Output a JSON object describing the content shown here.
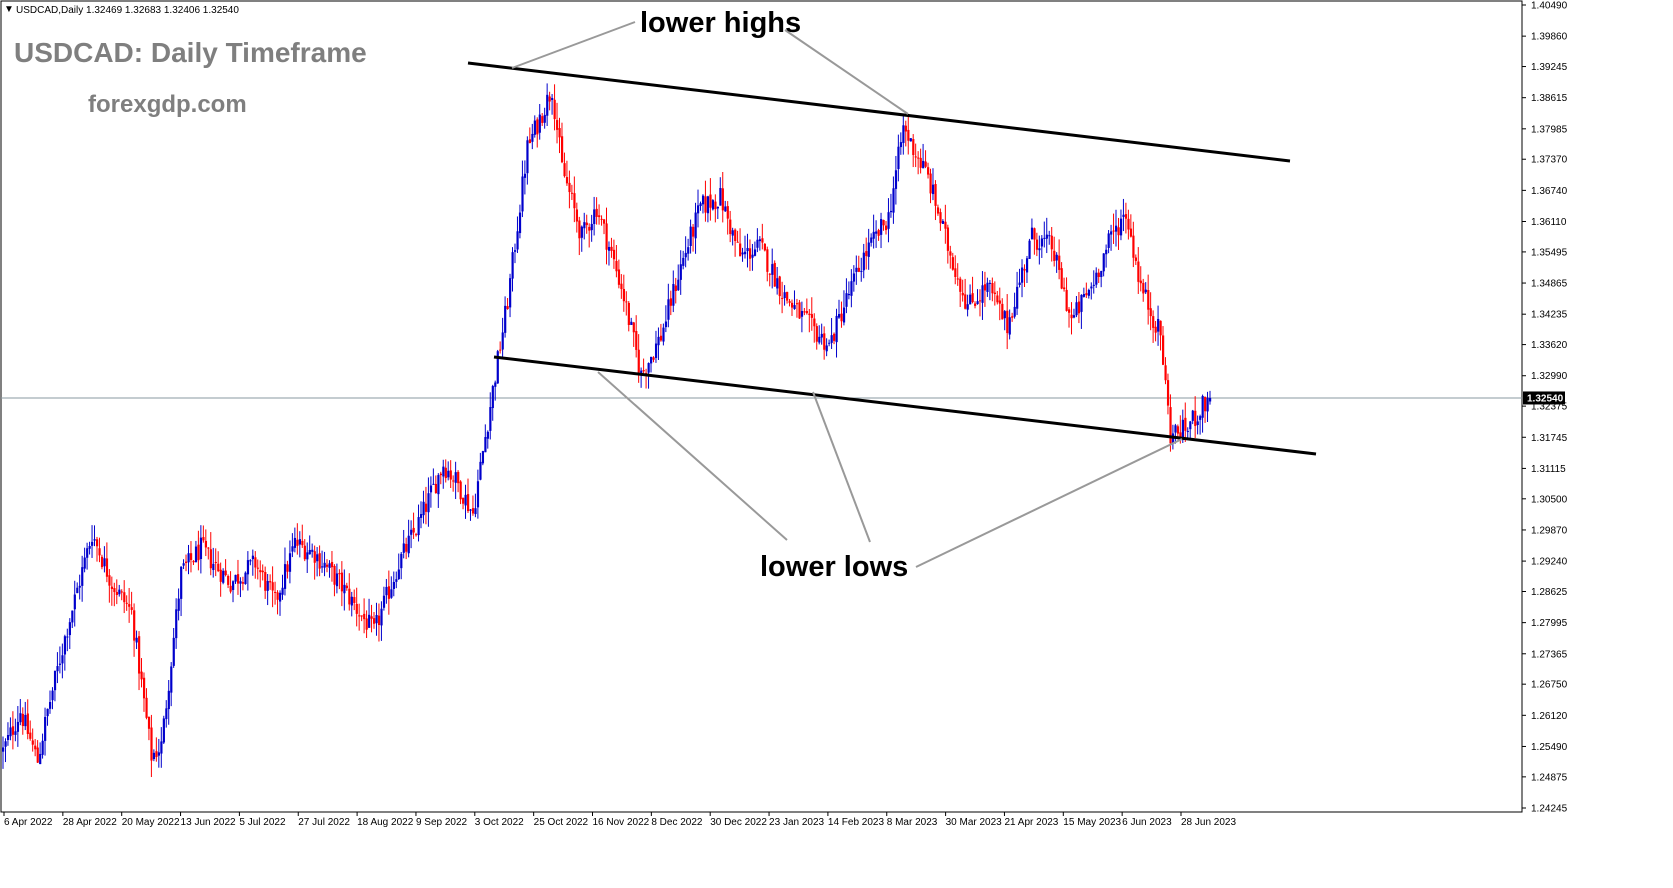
{
  "header": {
    "symbol_line": "USDCAD,Daily  1.32469 1.32683 1.32406 1.32540"
  },
  "title": "USDCAD: Daily Timeframe",
  "website": "forexgdp.com",
  "annotations": {
    "top": "lower highs",
    "bottom": "lower lows"
  },
  "colors": {
    "bull": "#0000cc",
    "bear": "#ff0000",
    "trendline": "#000000",
    "pointer": "#999999",
    "price_line": "#8a9aa0",
    "title": "#7f7f7f",
    "price_tag_bg": "#000000"
  },
  "chart_data": {
    "type": "candlestick",
    "symbol": "USDCAD",
    "timeframe": "Daily",
    "ylim": [
      1.24245,
      1.4049
    ],
    "y_ticks": [
      "1.40490",
      "1.39860",
      "1.39245",
      "1.38615",
      "1.37985",
      "1.37370",
      "1.36740",
      "1.36110",
      "1.35495",
      "1.34865",
      "1.34235",
      "1.33620",
      "1.32990",
      "1.32375",
      "1.31745",
      "1.31115",
      "1.30500",
      "1.29870",
      "1.29240",
      "1.28625",
      "1.27995",
      "1.27365",
      "1.26750",
      "1.26120",
      "1.25490",
      "1.24875",
      "1.24245"
    ],
    "x_ticks": [
      "6 Apr 2022",
      "28 Apr 2022",
      "20 May 2022",
      "13 Jun 2022",
      "5 Jul 2022",
      "27 Jul 2022",
      "18 Aug 2022",
      "9 Sep 2022",
      "3 Oct 2022",
      "25 Oct 2022",
      "16 Nov 2022",
      "8 Dec 2022",
      "30 Dec 2022",
      "23 Jan 2023",
      "14 Feb 2023",
      "8 Mar 2023",
      "30 Mar 2023",
      "21 Apr 2023",
      "15 May 2023",
      "6 Jun 2023",
      "28 Jun 2023"
    ],
    "current_price": "1.32540",
    "ohlc_last": {
      "open": 1.32469,
      "high": 1.32683,
      "low": 1.32406,
      "close": 1.3254
    },
    "path_anchors": [
      [
        0,
        1.254
      ],
      [
        7,
        1.262
      ],
      [
        14,
        1.252
      ],
      [
        18,
        1.262
      ],
      [
        26,
        1.279
      ],
      [
        36,
        1.298
      ],
      [
        44,
        1.288
      ],
      [
        52,
        1.282
      ],
      [
        60,
        1.253
      ],
      [
        64,
        1.255
      ],
      [
        72,
        1.29
      ],
      [
        80,
        1.295
      ],
      [
        92,
        1.288
      ],
      [
        102,
        1.292
      ],
      [
        110,
        1.284
      ],
      [
        118,
        1.296
      ],
      [
        126,
        1.294
      ],
      [
        136,
        1.288
      ],
      [
        144,
        1.282
      ],
      [
        150,
        1.278
      ],
      [
        160,
        1.292
      ],
      [
        168,
        1.3
      ],
      [
        178,
        1.312
      ],
      [
        184,
        1.308
      ],
      [
        190,
        1.302
      ],
      [
        198,
        1.327
      ],
      [
        204,
        1.345
      ],
      [
        212,
        1.376
      ],
      [
        222,
        1.388
      ],
      [
        226,
        1.372
      ],
      [
        234,
        1.358
      ],
      [
        240,
        1.364
      ],
      [
        250,
        1.348
      ],
      [
        258,
        1.33
      ],
      [
        266,
        1.338
      ],
      [
        274,
        1.352
      ],
      [
        282,
        1.364
      ],
      [
        290,
        1.366
      ],
      [
        298,
        1.354
      ],
      [
        306,
        1.356
      ],
      [
        316,
        1.346
      ],
      [
        326,
        1.34
      ],
      [
        334,
        1.336
      ],
      [
        340,
        1.344
      ],
      [
        348,
        1.354
      ],
      [
        358,
        1.362
      ],
      [
        364,
        1.38
      ],
      [
        374,
        1.37
      ],
      [
        382,
        1.356
      ],
      [
        390,
        1.344
      ],
      [
        398,
        1.348
      ],
      [
        406,
        1.34
      ],
      [
        416,
        1.358
      ],
      [
        424,
        1.356
      ],
      [
        432,
        1.341
      ],
      [
        440,
        1.348
      ],
      [
        448,
        1.358
      ],
      [
        454,
        1.363
      ],
      [
        460,
        1.348
      ],
      [
        468,
        1.338
      ],
      [
        472,
        1.318
      ],
      [
        478,
        1.319
      ],
      [
        484,
        1.323
      ],
      [
        488,
        1.3254
      ]
    ]
  }
}
